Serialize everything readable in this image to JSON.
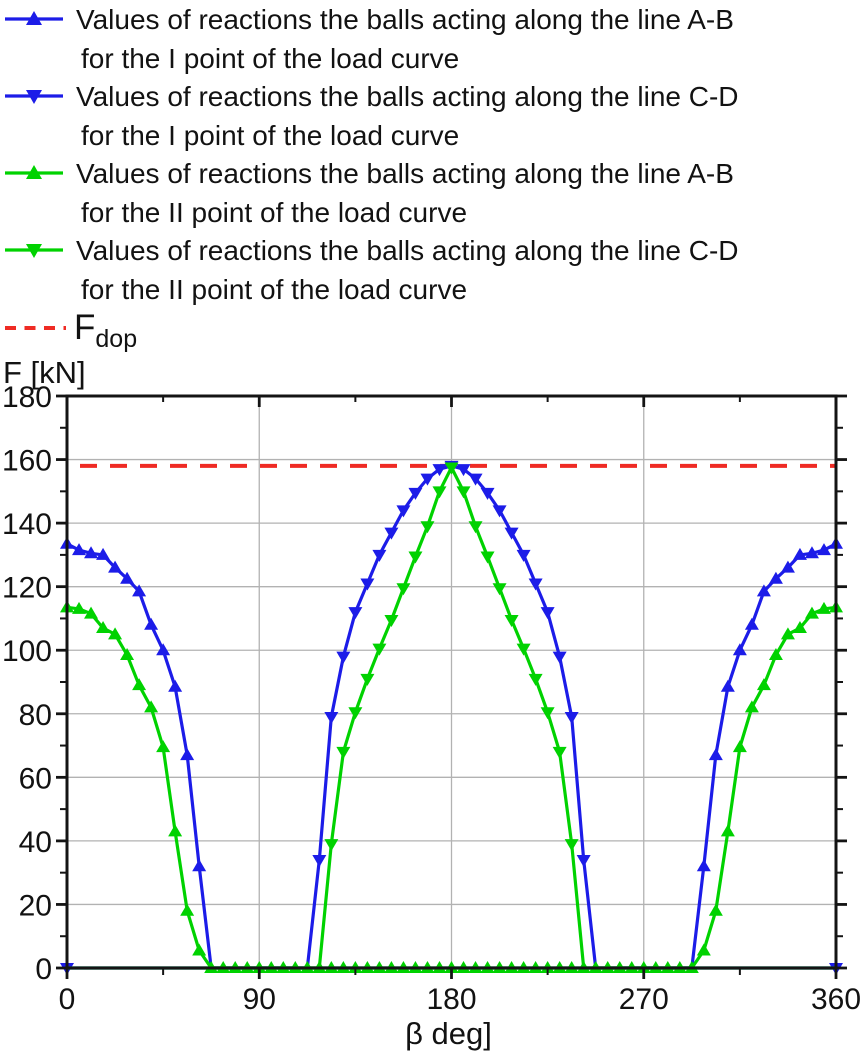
{
  "colors": {
    "blue": "#1c1ce8",
    "green": "#00d200",
    "red": "#ef2b24",
    "frame": "#141414",
    "grid": "#b2b2b2",
    "text": "#121212"
  },
  "legend": {
    "entries": [
      {
        "line1": "Values of reactions the balls acting along the line A-B",
        "line2": "for the I point of the load curve",
        "color": "#1c1ce8",
        "marker": "up"
      },
      {
        "line1": "Values of reactions the balls acting along the line C-D",
        "line2": "for the I point of the load curve",
        "color": "#1c1ce8",
        "marker": "down"
      },
      {
        "line1": "Values of reactions the balls acting along the line A-B",
        "line2": "for the II point of the load curve",
        "color": "#00d200",
        "marker": "up"
      },
      {
        "line1": "Values of reactions the balls acting along the line C-D",
        "line2": "for the II point of the load curve",
        "color": "#00d200",
        "marker": "down"
      }
    ],
    "fdop": {
      "main": "F",
      "sub": "dop",
      "color": "#ef2b24"
    }
  },
  "chart_data": {
    "type": "line",
    "title": "",
    "xlabel": "β deg]",
    "ylabel": "F [kN]",
    "xlim": [
      0,
      360
    ],
    "ylim": [
      0,
      180
    ],
    "x_ticks": [
      0,
      90,
      180,
      270,
      360
    ],
    "x_minor_ticks": [
      45,
      135,
      225,
      315
    ],
    "y_ticks": [
      0,
      20,
      40,
      60,
      80,
      100,
      120,
      140,
      160,
      180
    ],
    "y_minor_ticks": [
      10,
      30,
      50,
      70,
      90,
      110,
      130,
      150,
      170
    ],
    "grid_x": [
      90,
      180,
      270
    ],
    "grid_y": [
      20,
      40,
      60,
      80,
      100,
      120,
      140,
      160
    ],
    "legend_position": "top-left-above-plot",
    "f_dop": 158,
    "beta_step_deg": 5.625,
    "beta_deg": [
      0,
      5.625,
      11.25,
      16.875,
      22.5,
      28.125,
      33.75,
      39.375,
      45,
      50.625,
      56.25,
      61.875,
      67.5,
      73.125,
      78.75,
      84.375,
      90,
      95.625,
      101.25,
      106.875,
      112.5,
      118.125,
      123.75,
      129.375,
      135,
      140.625,
      146.25,
      151.875,
      157.5,
      163.125,
      168.75,
      174.375,
      180,
      185.625,
      191.25,
      196.875,
      202.5,
      208.125,
      213.75,
      219.375,
      225,
      230.625,
      236.25,
      241.875,
      247.5,
      253.125,
      258.75,
      264.375,
      270,
      275.625,
      281.25,
      286.875,
      292.5,
      298.125,
      303.75,
      309.375,
      315,
      320.625,
      326.25,
      331.875,
      337.5,
      343.125,
      348.75,
      354.375,
      360
    ],
    "series": [
      {
        "id": "ab_I",
        "name": "Reactions along line A-B, I point of load curve",
        "color": "#1c1ce8",
        "marker": "up",
        "marker_rule": "positive",
        "values": [
          133.5,
          131.5,
          130.5,
          130,
          126,
          122.5,
          118.5,
          108,
          100,
          88.5,
          67,
          32,
          0,
          0,
          0,
          0,
          0,
          0,
          0,
          0,
          0,
          0,
          0,
          0,
          0,
          0,
          0,
          0,
          0,
          0,
          0,
          0,
          0,
          0,
          0,
          0,
          0,
          0,
          0,
          0,
          0,
          0,
          0,
          0,
          0,
          0,
          0,
          0,
          0,
          0,
          0,
          0,
          0,
          32,
          67,
          88.5,
          100,
          108,
          118.5,
          122.5,
          126,
          130,
          130.5,
          131.5,
          133.5
        ]
      },
      {
        "id": "cd_I",
        "name": "Reactions along line C-D, I point of load curve",
        "color": "#1c1ce8",
        "marker": "down",
        "marker_rule": "positive_plus_ends",
        "values": [
          0,
          0,
          0,
          0,
          0,
          0,
          0,
          0,
          0,
          0,
          0,
          0,
          0,
          0,
          0,
          0,
          0,
          0,
          0,
          0,
          0,
          34,
          79,
          98,
          112,
          121,
          130,
          137,
          144,
          149.5,
          154,
          157,
          158,
          157,
          154,
          149.5,
          144,
          137,
          130,
          121,
          112,
          98,
          79,
          34,
          0,
          0,
          0,
          0,
          0,
          0,
          0,
          0,
          0,
          0,
          0,
          0,
          0,
          0,
          0,
          0,
          0,
          0,
          0,
          0,
          0
        ]
      },
      {
        "id": "ab_II",
        "name": "Reactions along line A-B, II point of load curve",
        "color": "#00d200",
        "marker": "up",
        "marker_rule": "all",
        "values": [
          113.5,
          113,
          111.5,
          107,
          105,
          98.5,
          89,
          82,
          69.5,
          43,
          18,
          5.5,
          0,
          0,
          0,
          0,
          0,
          0,
          0,
          0,
          0,
          0,
          0,
          0,
          0,
          0,
          0,
          0,
          0,
          0,
          0,
          0,
          0,
          0,
          0,
          0,
          0,
          0,
          0,
          0,
          0,
          0,
          0,
          0,
          0,
          0,
          0,
          0,
          0,
          0,
          0,
          0,
          0,
          5.5,
          18,
          43,
          69.5,
          82,
          89,
          98.5,
          105,
          107,
          111.5,
          113,
          113.5
        ]
      },
      {
        "id": "cd_II",
        "name": "Reactions along line C-D, II point of load curve",
        "color": "#00d200",
        "marker": "down",
        "marker_rule": "positive",
        "values": [
          0,
          0,
          0,
          0,
          0,
          0,
          0,
          0,
          0,
          0,
          0,
          0,
          0,
          0,
          0,
          0,
          0,
          0,
          0,
          0,
          0,
          0,
          39,
          68,
          80.5,
          91,
          100.5,
          109.5,
          119.5,
          129.5,
          139,
          150,
          157.5,
          150,
          139,
          129.5,
          119.5,
          109.5,
          100.5,
          91,
          80.5,
          68,
          39,
          0,
          0,
          0,
          0,
          0,
          0,
          0,
          0,
          0,
          0,
          0,
          0,
          0,
          0,
          0,
          0,
          0,
          0,
          0,
          0,
          0,
          0
        ]
      }
    ]
  }
}
